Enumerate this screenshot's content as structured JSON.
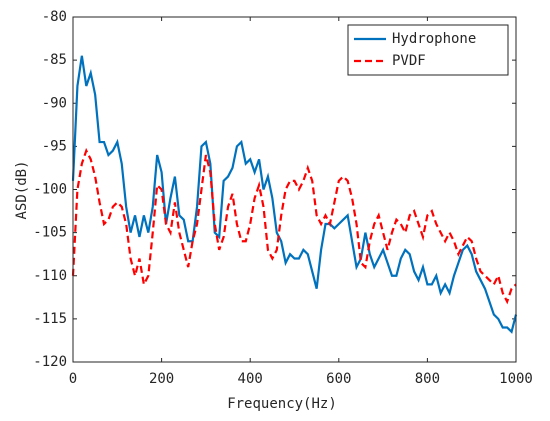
{
  "chart_data": {
    "type": "line",
    "xlabel": "Frequency(Hz)",
    "ylabel": "ASD(dB)",
    "x": [
      0,
      10,
      20,
      30,
      40,
      50,
      60,
      70,
      80,
      90,
      100,
      110,
      120,
      130,
      140,
      150,
      160,
      170,
      180,
      190,
      200,
      210,
      220,
      230,
      240,
      250,
      260,
      270,
      280,
      290,
      300,
      310,
      320,
      330,
      340,
      350,
      360,
      370,
      380,
      390,
      400,
      410,
      420,
      430,
      440,
      450,
      460,
      470,
      480,
      490,
      500,
      510,
      520,
      530,
      540,
      550,
      560,
      570,
      580,
      590,
      600,
      610,
      620,
      630,
      640,
      650,
      660,
      670,
      680,
      690,
      700,
      710,
      720,
      730,
      740,
      750,
      760,
      770,
      780,
      790,
      800,
      810,
      820,
      830,
      840,
      850,
      860,
      870,
      880,
      890,
      900,
      910,
      920,
      930,
      940,
      950,
      960,
      970,
      980,
      990,
      1000
    ],
    "series": [
      {
        "name": "Hydrophone",
        "color": "#0072bd",
        "dash": "solid",
        "values": [
          -99,
          -88,
          -84.5,
          -88,
          -86.5,
          -89,
          -94.5,
          -94.5,
          -96,
          -95.5,
          -94.5,
          -97,
          -102,
          -105,
          -103,
          -105.5,
          -103,
          -105,
          -102,
          -96,
          -98,
          -104,
          -101,
          -98.5,
          -103,
          -103.5,
          -106,
          -106,
          -102,
          -95,
          -94.5,
          -97,
          -105,
          -105.5,
          -99,
          -98.5,
          -97.5,
          -95,
          -94.5,
          -97,
          -96.5,
          -98,
          -96.5,
          -100,
          -98.5,
          -101,
          -105,
          -106,
          -108.5,
          -107.5,
          -108,
          -108,
          -107,
          -107.5,
          -109.5,
          -111.5,
          -107,
          -104,
          -104,
          -104.5,
          -104,
          -103.5,
          -103,
          -106,
          -109,
          -108,
          -105,
          -107.5,
          -109,
          -108,
          -107,
          -108.5,
          -110,
          -110,
          -108,
          -107,
          -107.5,
          -109.5,
          -110.5,
          -109,
          -111,
          -111,
          -110,
          -112,
          -111,
          -112,
          -110,
          -108.5,
          -107,
          -106.5,
          -107.5,
          -109.5,
          -110.5,
          -111.5,
          -113,
          -114.5,
          -115,
          -116,
          -116,
          -116.5,
          -114.5
        ]
      },
      {
        "name": "PVDF",
        "color": "#ff0000",
        "dash": "dashed",
        "values": [
          -110,
          -100,
          -97,
          -95.5,
          -96.5,
          -98.5,
          -101.5,
          -104,
          -103.5,
          -102,
          -101.5,
          -102,
          -104,
          -108,
          -110,
          -108,
          -111,
          -110,
          -105,
          -99.5,
          -100,
          -104,
          -105,
          -101.5,
          -105,
          -107,
          -109,
          -106,
          -104,
          -100,
          -96,
          -98,
          -104,
          -107,
          -105.5,
          -102,
          -100.5,
          -104,
          -106,
          -106,
          -104,
          -101,
          -99.5,
          -102,
          -107,
          -108,
          -107,
          -103,
          -100,
          -99,
          -99,
          -100,
          -99,
          -97.5,
          -99,
          -103,
          -104,
          -103,
          -104,
          -101.5,
          -99,
          -98.5,
          -99,
          -101,
          -104,
          -108.5,
          -109,
          -106,
          -104,
          -103,
          -105,
          -107,
          -105,
          -103.5,
          -104,
          -105,
          -103,
          -102.5,
          -104,
          -105.5,
          -103,
          -102.5,
          -104,
          -105,
          -106,
          -105,
          -106,
          -107.5,
          -106.5,
          -105.5,
          -106,
          -108,
          -109.5,
          -110,
          -110.5,
          -111,
          -110,
          -112,
          -113,
          -111.5,
          -111
        ]
      }
    ],
    "xlim": [
      0,
      1000
    ],
    "xticks": [
      0,
      200,
      400,
      600,
      800,
      1000
    ],
    "ylim": [
      -120,
      -80
    ],
    "yticks": [
      -120,
      -115,
      -110,
      -105,
      -100,
      -95,
      -90,
      -85,
      -80
    ],
    "legend": "upper right"
  }
}
